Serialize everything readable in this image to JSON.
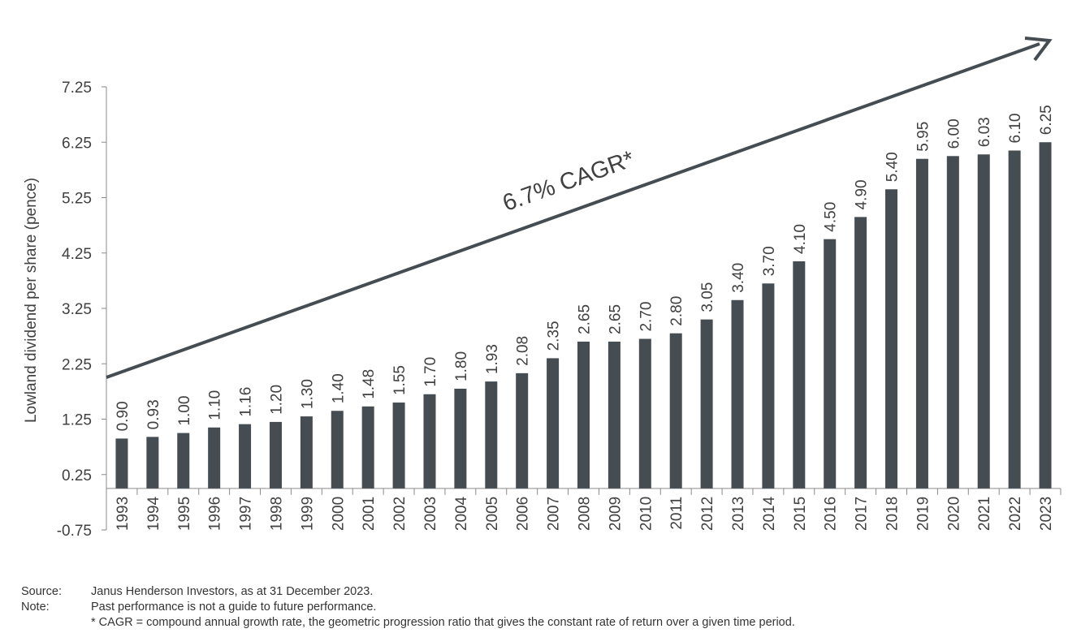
{
  "chart_data": {
    "type": "bar",
    "title": "",
    "xlabel": "",
    "ylabel": "Lowland dividend per share (pence)",
    "categories": [
      "1993",
      "1994",
      "1995",
      "1996",
      "1997",
      "1998",
      "1999",
      "2000",
      "2001",
      "2002",
      "2003",
      "2004",
      "2005",
      "2006",
      "2007",
      "2008",
      "2009",
      "2010",
      "2011",
      "2012",
      "2013",
      "2014",
      "2015",
      "2016",
      "2017",
      "2018",
      "2019",
      "2020",
      "2021",
      "2022",
      "2023"
    ],
    "values": [
      0.9,
      0.93,
      1.0,
      1.1,
      1.16,
      1.2,
      1.3,
      1.4,
      1.48,
      1.55,
      1.7,
      1.8,
      1.93,
      2.08,
      2.35,
      2.65,
      2.65,
      2.7,
      2.8,
      3.05,
      3.4,
      3.7,
      4.1,
      4.5,
      4.9,
      5.4,
      5.95,
      6.0,
      6.03,
      6.1,
      6.25
    ],
    "value_labels": [
      "0.90",
      "0.93",
      "1.00",
      "1.10",
      "1.16",
      "1.20",
      "1.30",
      "1.40",
      "1.48",
      "1.55",
      "1.70",
      "1.80",
      "1.93",
      "2.08",
      "2.35",
      "2.65",
      "2.65",
      "2.70",
      "2.80",
      "3.05",
      "3.40",
      "3.70",
      "4.10",
      "4.50",
      "4.90",
      "5.40",
      "5.95",
      "6.00",
      "6.03",
      "6.10",
      "6.25"
    ],
    "yticks": [
      "-0.75",
      "0.25",
      "1.25",
      "2.25",
      "3.25",
      "4.25",
      "5.25",
      "6.25",
      "7.25"
    ],
    "ylim": [
      -0.75,
      7.25
    ],
    "bar_color": "#454c52",
    "annotation": "6.7% CAGR*",
    "grid": false,
    "legend": "none"
  },
  "footer": {
    "source_label": "Source:",
    "source_text": "Janus Henderson Investors, as at 31 December 2023.",
    "note_label": "Note:",
    "note_text": "Past performance is not a guide to future performance.",
    "cagr_note": "* CAGR = compound annual growth rate, the geometric progression ratio that gives the constant rate of return over a given time period."
  }
}
